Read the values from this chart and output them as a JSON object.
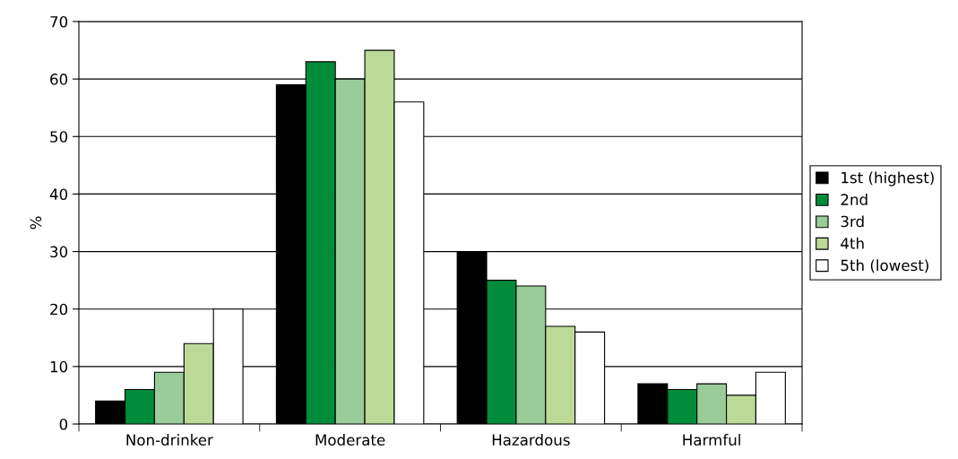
{
  "chart_data": {
    "type": "bar",
    "ylabel": "%",
    "categories": [
      "Non-drinker",
      "Moderate",
      "Hazardous",
      "Harmful"
    ],
    "series": [
      {
        "name": "1st (highest)",
        "color": "#000000",
        "values": [
          4,
          59,
          30,
          7
        ]
      },
      {
        "name": "2nd",
        "color": "#008c3a",
        "values": [
          6,
          63,
          25,
          6
        ]
      },
      {
        "name": "3rd",
        "color": "#99cc99",
        "values": [
          9,
          60,
          24,
          7
        ]
      },
      {
        "name": "4th",
        "color": "#bcd998",
        "values": [
          14,
          65,
          17,
          5
        ]
      },
      {
        "name": "5th (lowest)",
        "color": "#ffffff",
        "values": [
          20,
          56,
          16,
          9
        ]
      }
    ],
    "ylim": [
      0,
      70
    ],
    "yticks": [
      0,
      10,
      20,
      30,
      40,
      50,
      60,
      70
    ],
    "grid": "y",
    "legend": "right"
  }
}
